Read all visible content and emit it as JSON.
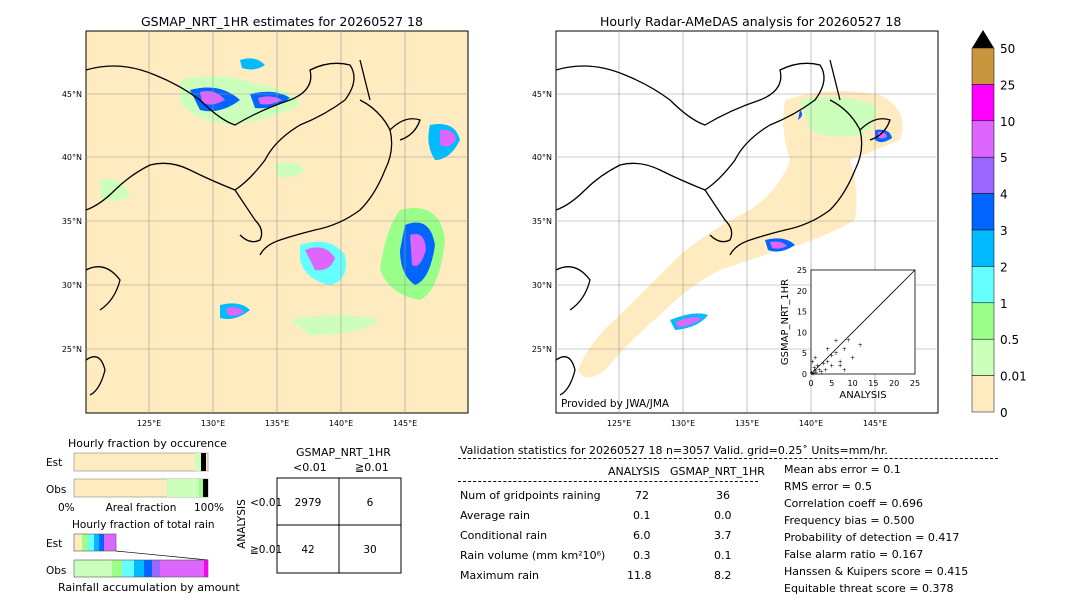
{
  "left_map": {
    "title": "GSMAP_NRT_1HR estimates for 20260527 18",
    "lat_labels": [
      "45°N",
      "40°N",
      "35°N",
      "30°N",
      "25°N"
    ],
    "lon_labels": [
      "125°E",
      "130°E",
      "135°E",
      "140°E",
      "145°E"
    ]
  },
  "right_map": {
    "title": "Hourly Radar-AMeDAS analysis for 20260527 18",
    "lat_labels": [
      "45°N",
      "40°N",
      "35°N",
      "30°N",
      "25°N"
    ],
    "lon_labels": [
      "125°E",
      "130°E",
      "135°E",
      "140°E",
      "145°E"
    ],
    "credit": "Provided by JWA/JMA"
  },
  "colorbar": {
    "labels": [
      "50",
      "25",
      "10",
      "5",
      "4",
      "3",
      "2",
      "1",
      "0.5",
      "0.01",
      "0"
    ],
    "colors": [
      "#c8963c",
      "#ff00ff",
      "#dd66ff",
      "#9966ff",
      "#0066ff",
      "#00bbff",
      "#66ffff",
      "#99ff88",
      "#ccffbb",
      "#ffebc0"
    ]
  },
  "chart_data": [
    {
      "type": "scatter",
      "title": "",
      "xlabel": "ANALYSIS",
      "ylabel": "GSMAP_NRT_1HR",
      "xlim": [
        0,
        25
      ],
      "ylim": [
        0,
        25
      ],
      "xticks": [
        "0",
        "5",
        "10",
        "15",
        "20",
        "25"
      ],
      "yticks": [
        "0",
        "5",
        "10",
        "15",
        "20",
        "25"
      ],
      "points": [
        [
          0.2,
          0.3
        ],
        [
          0.5,
          0.1
        ],
        [
          1,
          0.8
        ],
        [
          1.5,
          2
        ],
        [
          2,
          1
        ],
        [
          0.8,
          1.5
        ],
        [
          3,
          2.5
        ],
        [
          4,
          3
        ],
        [
          5,
          4.5
        ],
        [
          6,
          5
        ],
        [
          7,
          3
        ],
        [
          8,
          6
        ],
        [
          9,
          8.2
        ],
        [
          10,
          4
        ],
        [
          11.8,
          7
        ],
        [
          2.5,
          0.5
        ],
        [
          1.2,
          0.2
        ],
        [
          3.5,
          1
        ],
        [
          5,
          2
        ],
        [
          0.3,
          3
        ],
        [
          6,
          8
        ],
        [
          4,
          6
        ],
        [
          7,
          2
        ],
        [
          8,
          1
        ],
        [
          1,
          4
        ]
      ]
    },
    {
      "type": "bar",
      "title": "Hourly fraction by occurence",
      "categories": [
        "Est",
        "Obs"
      ],
      "xticks": [
        "0%",
        "100%"
      ],
      "xlabel": "Areal fraction"
    },
    {
      "type": "bar",
      "title": "Hourly fraction of total rain",
      "categories": [
        "Est",
        "Obs"
      ],
      "xlabel": "Rainfall accumulation by amount"
    }
  ],
  "contingency": {
    "title": "GSMAP_NRT_1HR",
    "col_headers": [
      "<0.01",
      "≧0.01"
    ],
    "row_axis_label": "ANALYSIS",
    "row_headers": [
      "<0.01",
      "≧0.01"
    ],
    "cells": [
      [
        "2979",
        "6"
      ],
      [
        "42",
        "30"
      ]
    ]
  },
  "validation": {
    "header": "Validation statistics for 20260527 18  n=3057 Valid. grid=0.25˚ Units=mm/hr.",
    "col_analysis": "ANALYSIS",
    "col_gsmap": "GSMAP_NRT_1HR",
    "rows": [
      {
        "label": "Num of gridpoints raining",
        "a": "72",
        "g": "36"
      },
      {
        "label": "Average rain",
        "a": "0.1",
        "g": "0.0"
      },
      {
        "label": "Conditional rain",
        "a": "6.0",
        "g": "3.7"
      },
      {
        "label": "Rain volume (mm km²10⁶)",
        "a": "0.3",
        "g": "0.1"
      },
      {
        "label": "Maximum rain",
        "a": "11.8",
        "g": "8.2"
      }
    ],
    "scores": [
      "Mean abs error =    0.1",
      "RMS error =    0.5",
      "Correlation coeff =  0.696",
      "Frequency bias =  0.500",
      "Probability of detection =  0.417",
      "False alarm ratio =  0.167",
      "Hanssen & Kuipers score =  0.415",
      "Equitable threat score =  0.378"
    ]
  }
}
